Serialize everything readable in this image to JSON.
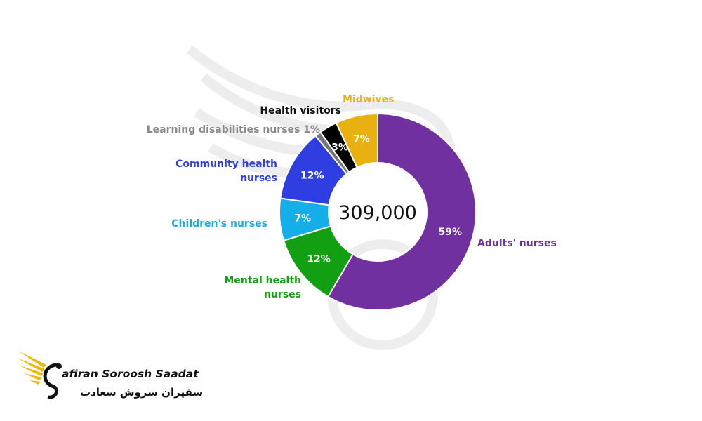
{
  "chart_data": {
    "type": "pie",
    "center_total": "309,000",
    "slices": [
      {
        "label": "Adults' nurses",
        "value": 59,
        "value_label": "59%",
        "color": "#7030a0",
        "label_color": "#7030a0"
      },
      {
        "label": "Mental health nurses",
        "value": 12,
        "value_label": "12%",
        "color": "#12a012",
        "label_color": "#12a012"
      },
      {
        "label": "Children's nurses",
        "value": 7,
        "value_label": "7%",
        "color": "#16aee8",
        "label_color": "#16aee8"
      },
      {
        "label": "Community health nurses",
        "value": 12,
        "value_label": "12%",
        "color": "#2e3ee0",
        "label_color": "#2e3ee0"
      },
      {
        "label": "Learning disabilities nurses 1%",
        "value": 1,
        "value_label": "",
        "color": "#777777",
        "label_color": "#888888"
      },
      {
        "label": "Health visitors",
        "value": 3,
        "value_label": "3%",
        "color": "#000000",
        "label_color": "#111111"
      },
      {
        "label": "Midwives",
        "value": 7,
        "value_label": "7%",
        "color": "#e8b010",
        "label_color": "#e8b010"
      }
    ]
  },
  "logo": {
    "text_en": "afiran Soroosh Saadat",
    "text_fa": "سفیران سروش سعادت",
    "wing_color": "#f2b705"
  }
}
